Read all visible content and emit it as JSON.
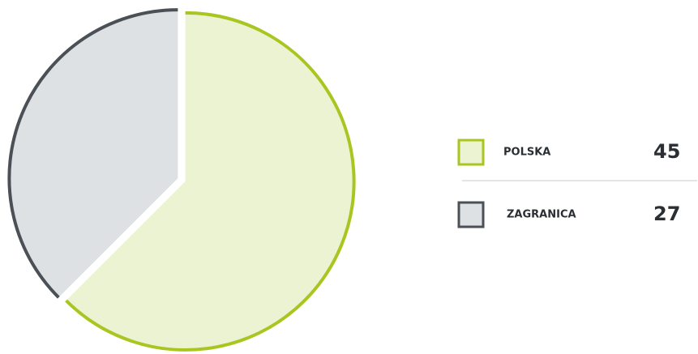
{
  "chart_data": {
    "type": "pie",
    "categories": [
      "POLSKA",
      "ZAGRANICA"
    ],
    "values": [
      45,
      27
    ],
    "colors": [
      "#a8c520",
      "#4a5056"
    ],
    "fills": [
      "#ecf3d3",
      "#dde1e4"
    ],
    "start_angle": 0,
    "direction": "clockwise",
    "legend": "right"
  }
}
